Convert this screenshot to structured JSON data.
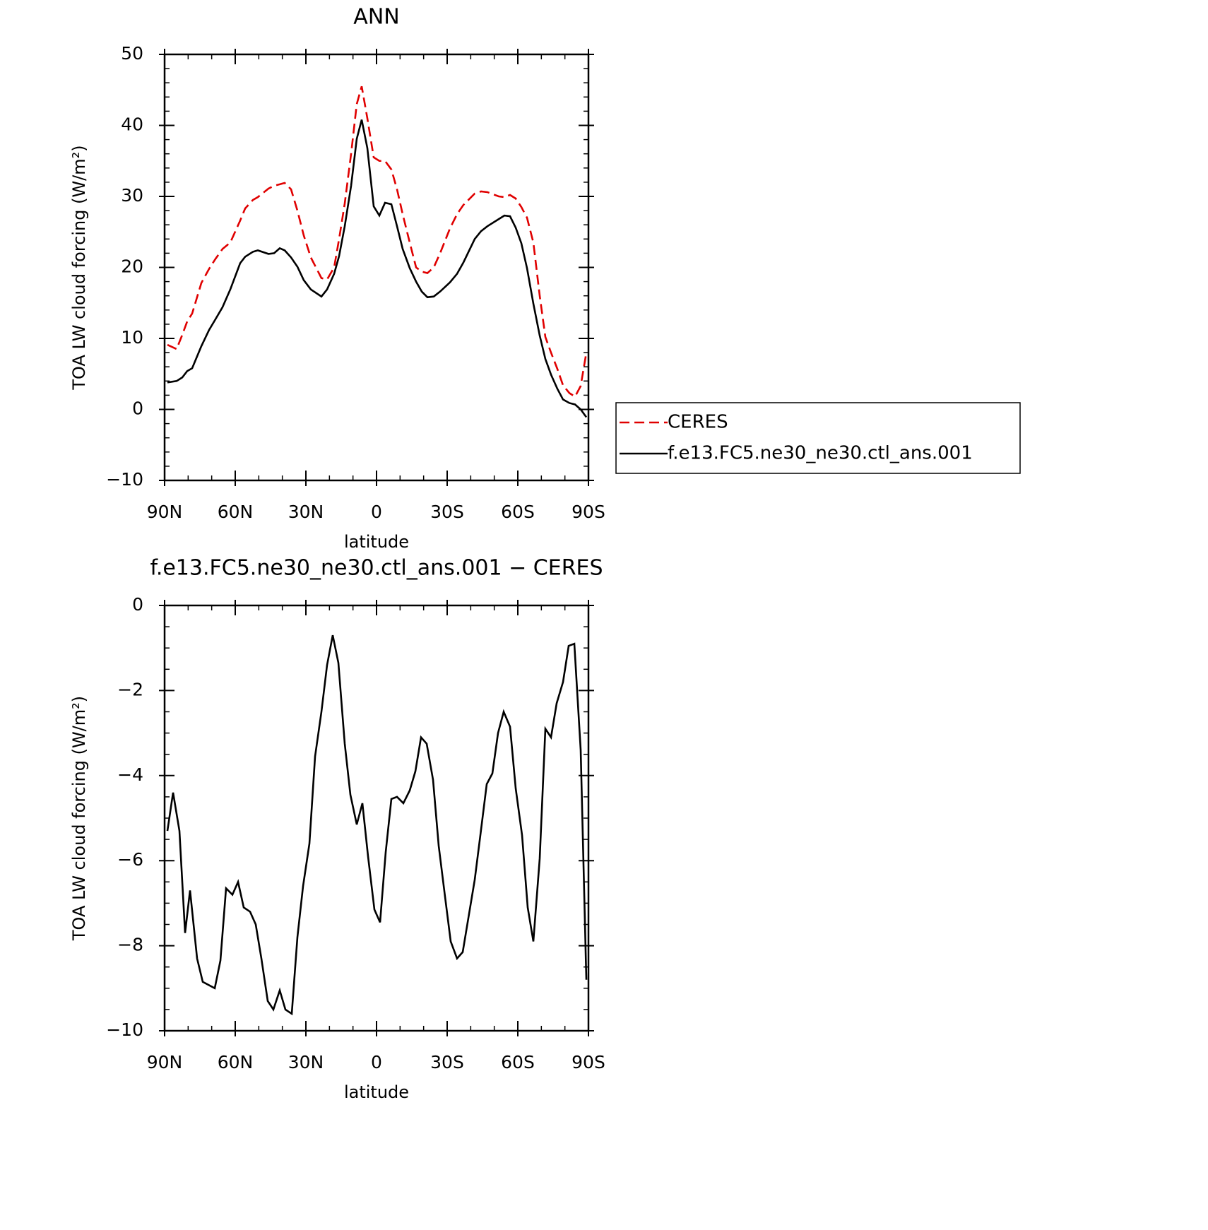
{
  "chart_data": [
    {
      "type": "line",
      "title": "ANN",
      "xlabel": "latitude",
      "ylabel": "TOA LW cloud forcing (W/m²)",
      "x": [
        88.8,
        84.9,
        82.5,
        80.4,
        78.3,
        74.4,
        71.1,
        68.4,
        65.4,
        62.1,
        57.9,
        55.8,
        52.5,
        50.4,
        45.9,
        43.5,
        41.1,
        39.0,
        36.3,
        33.6,
        30.9,
        27.9,
        23.4,
        21.0,
        18.0,
        15.9,
        13.5,
        10.8,
        8.4,
        6.3,
        3.9,
        1.2,
        -1.2,
        -3.6,
        -6.3,
        -8.7,
        -11.1,
        -14.1,
        -16.8,
        -19.2,
        -21.6,
        -24.3,
        -27.0,
        -31.2,
        -34.2,
        -36.9,
        -41.7,
        -44.4,
        -47.1,
        -51.9,
        -54.3,
        -56.7,
        -59.1,
        -61.5,
        -63.9,
        -66.6,
        -69.3,
        -71.7,
        -74.1,
        -76.8,
        -79.2,
        -81.9,
        -84.3,
        -86.7,
        -89.1
      ],
      "series": [
        {
          "name": "CERES",
          "color": "#e00000",
          "style": "dashed",
          "values": [
            9.1,
            8.5,
            10.5,
            12.4,
            13.5,
            17.8,
            19.8,
            21.2,
            22.6,
            23.5,
            26.6,
            28.3,
            29.5,
            29.9,
            31.1,
            31.5,
            31.7,
            31.9,
            31.0,
            28.0,
            24.5,
            21.4,
            18.5,
            18.3,
            20.0,
            24.0,
            29.0,
            36.0,
            43.0,
            45.5,
            41.0,
            35.5,
            35.0,
            35.0,
            33.8,
            31.0,
            27.5,
            23.5,
            20.0,
            19.4,
            19.2,
            20.0,
            22.0,
            25.5,
            27.5,
            28.8,
            30.4,
            30.7,
            30.6,
            30.0,
            29.9,
            30.2,
            29.7,
            28.5,
            27.0,
            23.5,
            16.0,
            10.2,
            8.0,
            5.7,
            3.4,
            2.3,
            1.8,
            3.3,
            8.0
          ]
        },
        {
          "name": "f.e13.FC5.ne30_ne30.ctl_ans.001",
          "color": "#000000",
          "style": "solid",
          "values": [
            3.8,
            4.0,
            4.5,
            5.4,
            5.8,
            8.9,
            11.2,
            12.7,
            14.4,
            16.9,
            20.6,
            21.5,
            22.2,
            22.4,
            21.9,
            22.0,
            22.7,
            22.4,
            21.4,
            20.1,
            18.2,
            16.9,
            15.9,
            16.9,
            19.1,
            21.6,
            25.8,
            31.5,
            38.1,
            40.8,
            36.8,
            28.6,
            27.3,
            29.1,
            28.9,
            25.8,
            22.6,
            19.9,
            18.0,
            16.6,
            15.8,
            15.9,
            16.6,
            17.9,
            19.1,
            20.7,
            24.0,
            25.1,
            25.8,
            26.8,
            27.3,
            27.2,
            25.6,
            23.4,
            19.9,
            14.9,
            10.4,
            7.1,
            4.9,
            2.9,
            1.4,
            0.9,
            0.7,
            0.0,
            -1.1
          ]
        }
      ],
      "xlim": [
        90,
        -90
      ],
      "xticks": [
        {
          "value": 90,
          "label": "90N"
        },
        {
          "value": 60,
          "label": "60N"
        },
        {
          "value": 30,
          "label": "30N"
        },
        0,
        {
          "value": -30,
          "label": "30S"
        },
        {
          "value": -60,
          "label": "60S"
        },
        {
          "value": -90,
          "label": "90S"
        }
      ],
      "ylim": [
        -10,
        50
      ],
      "yticks": [
        {
          "value": -10,
          "label": "−10"
        },
        0,
        10,
        20,
        30,
        40,
        50
      ],
      "x_minor_per_major": 3,
      "y_minor_per_major": 5,
      "legend": "outside-right"
    },
    {
      "type": "line",
      "title": "f.e13.FC5.ne30_ne30.ctl_ans.001 − CERES",
      "xlabel": "latitude",
      "ylabel": "TOA LW cloud forcing (W/m²)",
      "x": [
        88.8,
        86.4,
        83.7,
        81.3,
        79.2,
        76.2,
        73.8,
        68.7,
        66.3,
        63.9,
        61.2,
        58.8,
        56.4,
        53.7,
        51.3,
        48.9,
        46.2,
        43.8,
        41.1,
        38.7,
        36.0,
        33.6,
        31.2,
        28.5,
        26.1,
        23.4,
        21.0,
        18.6,
        16.2,
        13.5,
        11.1,
        8.4,
        6.0,
        3.6,
        0.9,
        -1.5,
        -3.9,
        -6.3,
        -8.7,
        -11.4,
        -14.1,
        -16.5,
        -18.9,
        -21.3,
        -24.0,
        -26.4,
        -29.1,
        -31.5,
        -34.2,
        -36.6,
        -39.0,
        -41.7,
        -44.1,
        -46.8,
        -49.2,
        -51.6,
        -54.0,
        -56.7,
        -59.1,
        -61.8,
        -64.2,
        -66.6,
        -69.3,
        -71.7,
        -74.1,
        -76.5,
        -79.2,
        -81.6,
        -84.0,
        -86.7,
        -89.1
      ],
      "values": [
        -5.3,
        -4.4,
        -5.3,
        -7.7,
        -6.7,
        -8.3,
        -8.85,
        -9.0,
        -8.35,
        -6.65,
        -6.8,
        -6.5,
        -7.1,
        -7.2,
        -7.5,
        -8.3,
        -9.3,
        -9.5,
        -9.05,
        -9.5,
        -9.6,
        -7.8,
        -6.6,
        -5.6,
        -3.55,
        -2.5,
        -1.4,
        -0.7,
        -1.35,
        -3.25,
        -4.45,
        -5.15,
        -4.65,
        -5.9,
        -7.15,
        -7.45,
        -5.8,
        -4.55,
        -4.5,
        -4.65,
        -4.35,
        -3.9,
        -3.1,
        -3.25,
        -4.1,
        -5.65,
        -6.85,
        -7.9,
        -8.3,
        -8.15,
        -7.35,
        -6.45,
        -5.4,
        -4.2,
        -3.95,
        -3.0,
        -2.5,
        -2.85,
        -4.3,
        -5.4,
        -7.1,
        -7.9,
        -5.95,
        -2.9,
        -3.1,
        -2.3,
        -1.8,
        -0.95,
        -0.9,
        -3.4,
        -8.8
      ],
      "color": "#000000",
      "xlim": [
        90,
        -90
      ],
      "xticks": [
        {
          "value": 90,
          "label": "90N"
        },
        {
          "value": 60,
          "label": "60N"
        },
        {
          "value": 30,
          "label": "30N"
        },
        0,
        {
          "value": -30,
          "label": "30S"
        },
        {
          "value": -60,
          "label": "60S"
        },
        {
          "value": -90,
          "label": "90S"
        }
      ],
      "ylim": [
        -10,
        0
      ],
      "yticks": [
        {
          "value": -10,
          "label": "−10"
        },
        {
          "value": -8,
          "label": "−8"
        },
        {
          "value": -6,
          "label": "−6"
        },
        {
          "value": -4,
          "label": "−4"
        },
        {
          "value": -2,
          "label": "−2"
        },
        0
      ],
      "x_minor_per_major": 3,
      "y_minor_per_major": 4
    }
  ]
}
